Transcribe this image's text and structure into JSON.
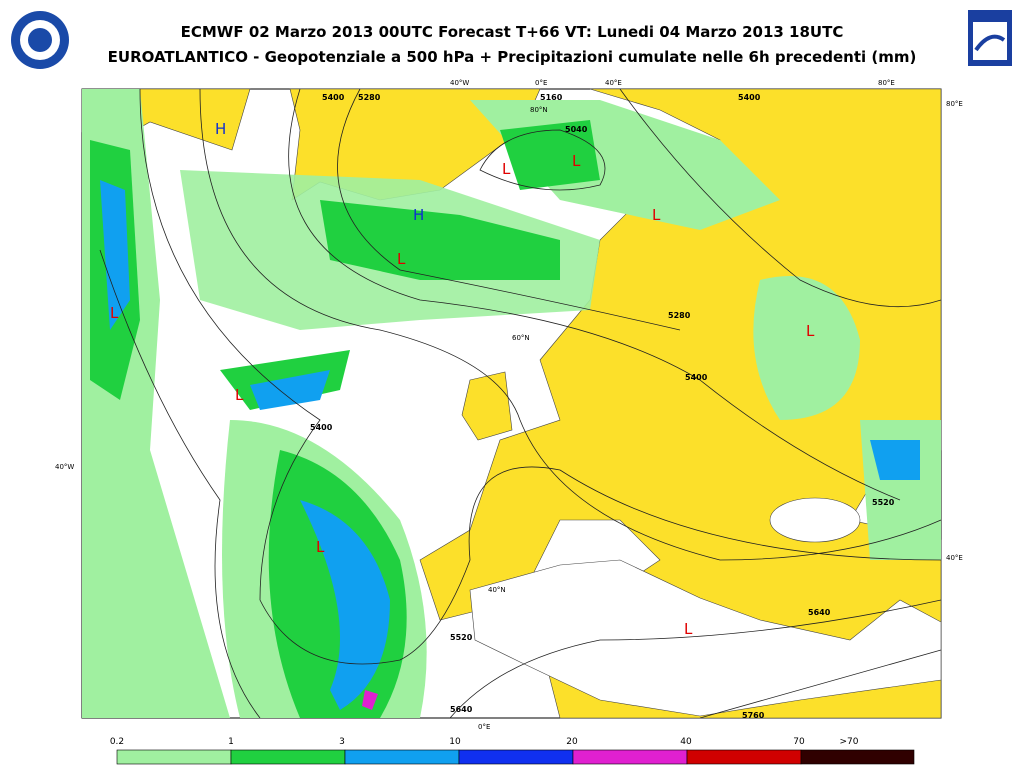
{
  "header": {
    "title_line1": "ECMWF 02 Marzo 2013 00UTC Forecast T+66 VT: Lunedi 04 Marzo 2013 18UTC",
    "title_line2": "EUROATLANTICO - Geopotenziale a 500 hPa + Precipitazioni cumulate nelle 6h precedenti (mm)"
  },
  "map": {
    "grid_labels": [
      "40°W",
      "0°E",
      "40°E",
      "80°E",
      "80°E",
      "40°W",
      "40°E",
      "0°E",
      "80°N",
      "60°N",
      "40°N"
    ],
    "contour_labels": [
      "5400",
      "5280",
      "5160",
      "5040",
      "5400",
      "5280",
      "5400",
      "5520",
      "5520",
      "5640",
      "5640",
      "5760",
      "5400"
    ],
    "pressure_centers": [
      "H",
      "L",
      "L",
      "H",
      "L",
      "L",
      "L",
      "L",
      "L",
      "L",
      "L"
    ]
  },
  "legend": {
    "labels": [
      "0.2",
      "1",
      "3",
      "10",
      "20",
      "40",
      "70",
      ">70"
    ]
  }
}
